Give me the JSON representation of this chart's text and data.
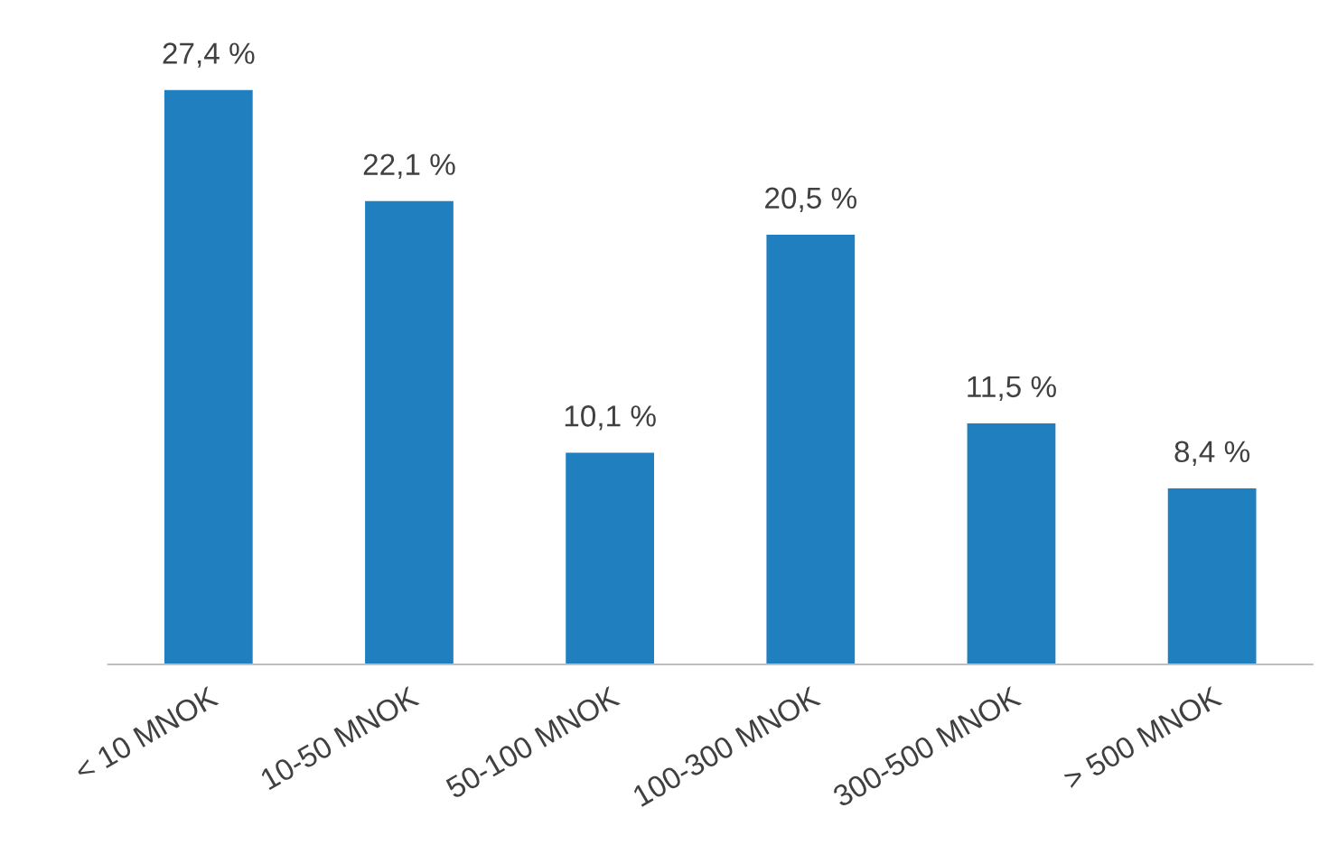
{
  "chart_data": {
    "type": "bar",
    "categories": [
      "< 10 MNOK",
      "10-50 MNOK",
      "50-100 MNOK",
      "100-300 MNOK",
      "300-500 MNOK",
      "> 500 MNOK"
    ],
    "values": [
      27.4,
      22.1,
      10.1,
      20.5,
      11.5,
      8.4
    ],
    "value_labels": [
      "27,4 %",
      "22,1 %",
      "10,1 %",
      "20,5 %",
      "11,5 %",
      "8,4 %"
    ],
    "color": "#1f7fbf",
    "grid": false,
    "legend": false
  }
}
